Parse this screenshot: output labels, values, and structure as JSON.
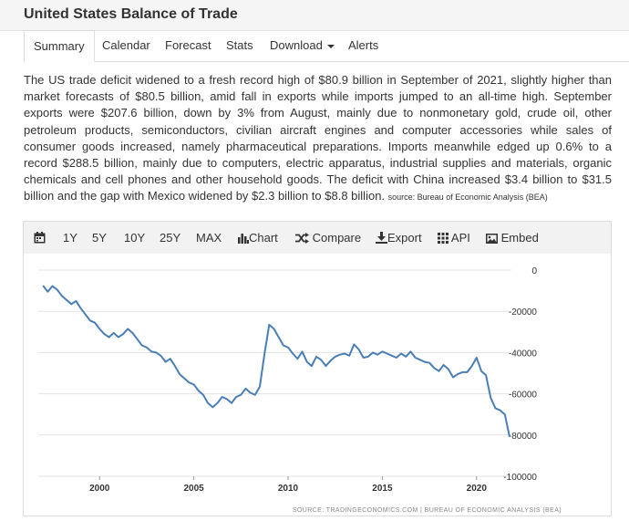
{
  "header": {
    "title": "United States Balance of Trade"
  },
  "tabs": [
    {
      "label": "Summary",
      "active": true
    },
    {
      "label": "Calendar"
    },
    {
      "label": "Forecast"
    },
    {
      "label": "Stats"
    },
    {
      "label": "Download"
    },
    {
      "label": "Alerts"
    }
  ],
  "summary": {
    "text": "The US trade deficit widened to a fresh record high of $80.9 billion in September of 2021, slightly higher than market forecasts of $80.5 billion, amid fall in exports while imports jumped to an all-time high. September exports were $207.6 billion, down by 3% from August, mainly due to nonmonetary gold, crude oil, other petroleum products, semiconductors, civilian aircraft engines and computer accessories while sales of consumer goods increased, namely pharmaceutical preparations. Imports meanwhile edged up 0.6% to a record $288.5 billion, mainly due to computers, electric apparatus, industrial supplies and materials, organic chemicals and cell phones and other household goods. The deficit with China increased $3.4 billion to $31.5 billion and the gap with Mexico widened by $2.3 billion to $8.8 billion.",
    "source": "source: Bureau of Economic Analysis (BEA)"
  },
  "toolbar": {
    "ranges": [
      "1Y",
      "5Y",
      "10Y",
      "25Y",
      "MAX"
    ],
    "chart": "Chart",
    "compare": "Compare",
    "export": "Export",
    "api": "API",
    "embed": "Embed"
  },
  "colors": {
    "line": "#4a7eb6",
    "grid": "#e3e3e3"
  },
  "chart_data": {
    "type": "line",
    "source_note": "SOURCE: TRADINGECONOMICS.COM | BUREAU OF ECONOMIC ANALYSIS (BEA)",
    "ylim": [
      -100000,
      0
    ],
    "yticks": [
      0,
      -20000,
      -40000,
      -60000,
      -80000,
      -100000
    ],
    "xticks": [
      2000,
      2005,
      2010,
      2015,
      2020
    ],
    "xlim": [
      1996.75,
      2021.75
    ],
    "grid": "horizontal",
    "series": [
      {
        "x": [
          1997.0,
          1997.25,
          1997.5,
          1997.75,
          1998.0,
          1998.25,
          1998.5,
          1998.75,
          1999.0,
          1999.25,
          1999.5,
          1999.75,
          2000.0,
          2000.25,
          2000.5,
          2000.75,
          2001.0,
          2001.25,
          2001.5,
          2001.75,
          2002.0,
          2002.25,
          2002.5,
          2002.75,
          2003.0,
          2003.25,
          2003.5,
          2003.75,
          2004.0,
          2004.25,
          2004.5,
          2004.75,
          2005.0,
          2005.25,
          2005.5,
          2005.75,
          2006.0,
          2006.25,
          2006.5,
          2006.75,
          2007.0,
          2007.25,
          2007.5,
          2007.75,
          2008.0,
          2008.25,
          2008.5,
          2008.75,
          2009.0,
          2009.25,
          2009.5,
          2009.75,
          2010.0,
          2010.25,
          2010.5,
          2010.75,
          2011.0,
          2011.25,
          2011.5,
          2011.75,
          2012.0,
          2012.25,
          2012.5,
          2012.75,
          2013.0,
          2013.25,
          2013.5,
          2013.75,
          2014.0,
          2014.25,
          2014.5,
          2014.75,
          2015.0,
          2015.25,
          2015.5,
          2015.75,
          2016.0,
          2016.25,
          2016.5,
          2016.75,
          2017.0,
          2017.25,
          2017.5,
          2017.75,
          2018.0,
          2018.25,
          2018.5,
          2018.75,
          2019.0,
          2019.25,
          2019.5,
          2019.75,
          2020.0,
          2020.25,
          2020.5,
          2020.75,
          2021.0,
          2021.25,
          2021.5,
          2021.75
        ],
        "y": [
          -7500,
          -10500,
          -7800,
          -9500,
          -12500,
          -14500,
          -16500,
          -15000,
          -18500,
          -21500,
          -24500,
          -25500,
          -28500,
          -31000,
          -32500,
          -30500,
          -32500,
          -31000,
          -28500,
          -30500,
          -33500,
          -36500,
          -37500,
          -39500,
          -40000,
          -41500,
          -44500,
          -43000,
          -46500,
          -50500,
          -52500,
          -54500,
          -55500,
          -58500,
          -60500,
          -64500,
          -66500,
          -64500,
          -61500,
          -62500,
          -64500,
          -61500,
          -60500,
          -57500,
          -59500,
          -60500,
          -56500,
          -40500,
          -26500,
          -28500,
          -32500,
          -36500,
          -37500,
          -40500,
          -43000,
          -39500,
          -44500,
          -46500,
          -42000,
          -43500,
          -46500,
          -44000,
          -42000,
          -41000,
          -40500,
          -41500,
          -36000,
          -38500,
          -42500,
          -42000,
          -40000,
          -41000,
          -39500,
          -40500,
          -41500,
          -42500,
          -40500,
          -42000,
          -39500,
          -42500,
          -43500,
          -44500,
          -45000,
          -47500,
          -49000,
          -46000,
          -48000,
          -52000,
          -50500,
          -49500,
          -49500,
          -46500,
          -42500,
          -49000,
          -51000,
          -62000,
          -67000,
          -68000,
          -70000,
          -80900
        ]
      }
    ]
  }
}
